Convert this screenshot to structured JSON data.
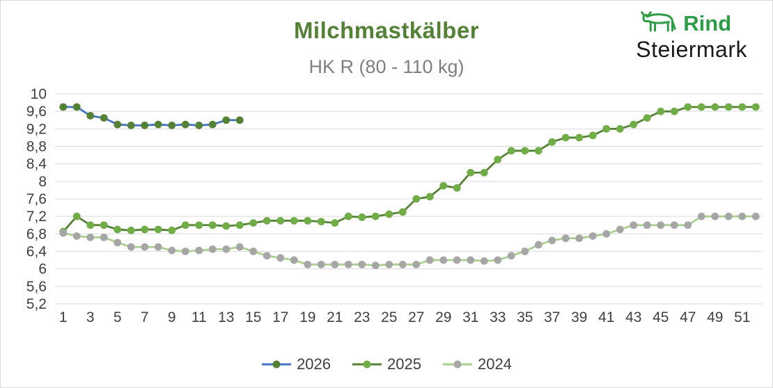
{
  "branding": {
    "name": "Rind",
    "region": "Steiermark",
    "green": "#2E9E46",
    "black": "#1A1A1A"
  },
  "colors": {
    "title": "#538135",
    "subtitle": "#7F7F7F",
    "axis_text": "#404040",
    "grid": "#D9D9D9",
    "border": "#D9D9D9"
  },
  "chart_data": {
    "type": "line",
    "title": "Milchmastkälber",
    "subtitle": "HK R (80 - 110 kg)",
    "xlabel": "",
    "ylabel": "",
    "grid": true,
    "legend_position": "bottom",
    "decimal_separator": ",",
    "ylim": [
      5.2,
      10
    ],
    "y_ticks": [
      10,
      9.6,
      9.2,
      8.8,
      8.4,
      8,
      7.6,
      7.2,
      6.8,
      6.4,
      6,
      5.6,
      5.2
    ],
    "x": [
      1,
      2,
      3,
      4,
      5,
      6,
      7,
      8,
      9,
      10,
      11,
      12,
      13,
      14,
      15,
      16,
      17,
      18,
      19,
      20,
      21,
      22,
      23,
      24,
      25,
      26,
      27,
      28,
      29,
      30,
      31,
      32,
      33,
      34,
      35,
      36,
      37,
      38,
      39,
      40,
      41,
      42,
      43,
      44,
      45,
      46,
      47,
      48,
      49,
      50,
      51,
      52
    ],
    "x_tick_labels": [
      1,
      3,
      5,
      7,
      9,
      11,
      13,
      15,
      17,
      19,
      21,
      23,
      25,
      27,
      29,
      31,
      33,
      35,
      37,
      39,
      41,
      43,
      45,
      47,
      49,
      51
    ],
    "series": [
      {
        "name": "2026",
        "line_color": "#4472C4",
        "marker_color": "#548235",
        "values": [
          9.7,
          9.7,
          9.5,
          9.45,
          9.3,
          9.28,
          9.28,
          9.3,
          9.28,
          9.3,
          9.28,
          9.3,
          9.4,
          9.4
        ]
      },
      {
        "name": "2025",
        "line_color": "#548235",
        "marker_color": "#70AD47",
        "values": [
          6.85,
          7.2,
          7.0,
          7.0,
          6.9,
          6.88,
          6.9,
          6.9,
          6.88,
          7.0,
          7.0,
          7.0,
          6.98,
          7.0,
          7.05,
          7.1,
          7.1,
          7.1,
          7.1,
          7.08,
          7.05,
          7.2,
          7.18,
          7.2,
          7.25,
          7.3,
          7.6,
          7.65,
          7.9,
          7.85,
          8.2,
          8.2,
          8.5,
          8.7,
          8.7,
          8.7,
          8.9,
          9.0,
          9.0,
          9.05,
          9.2,
          9.2,
          9.3,
          9.45,
          9.6,
          9.6,
          9.7,
          9.7,
          9.7,
          9.7,
          9.7,
          9.7
        ]
      },
      {
        "name": "2024",
        "line_color": "#A9D18E",
        "marker_color": "#A6A6A6",
        "values": [
          6.82,
          6.75,
          6.72,
          6.72,
          6.6,
          6.5,
          6.5,
          6.5,
          6.42,
          6.4,
          6.42,
          6.45,
          6.45,
          6.5,
          6.4,
          6.3,
          6.25,
          6.2,
          6.1,
          6.1,
          6.1,
          6.1,
          6.1,
          6.08,
          6.1,
          6.1,
          6.1,
          6.2,
          6.2,
          6.2,
          6.2,
          6.18,
          6.2,
          6.3,
          6.4,
          6.55,
          6.65,
          6.7,
          6.7,
          6.75,
          6.8,
          6.9,
          7.0,
          7.0,
          7.0,
          7.0,
          7.0,
          7.2,
          7.2,
          7.2,
          7.2,
          7.2
        ]
      }
    ]
  }
}
